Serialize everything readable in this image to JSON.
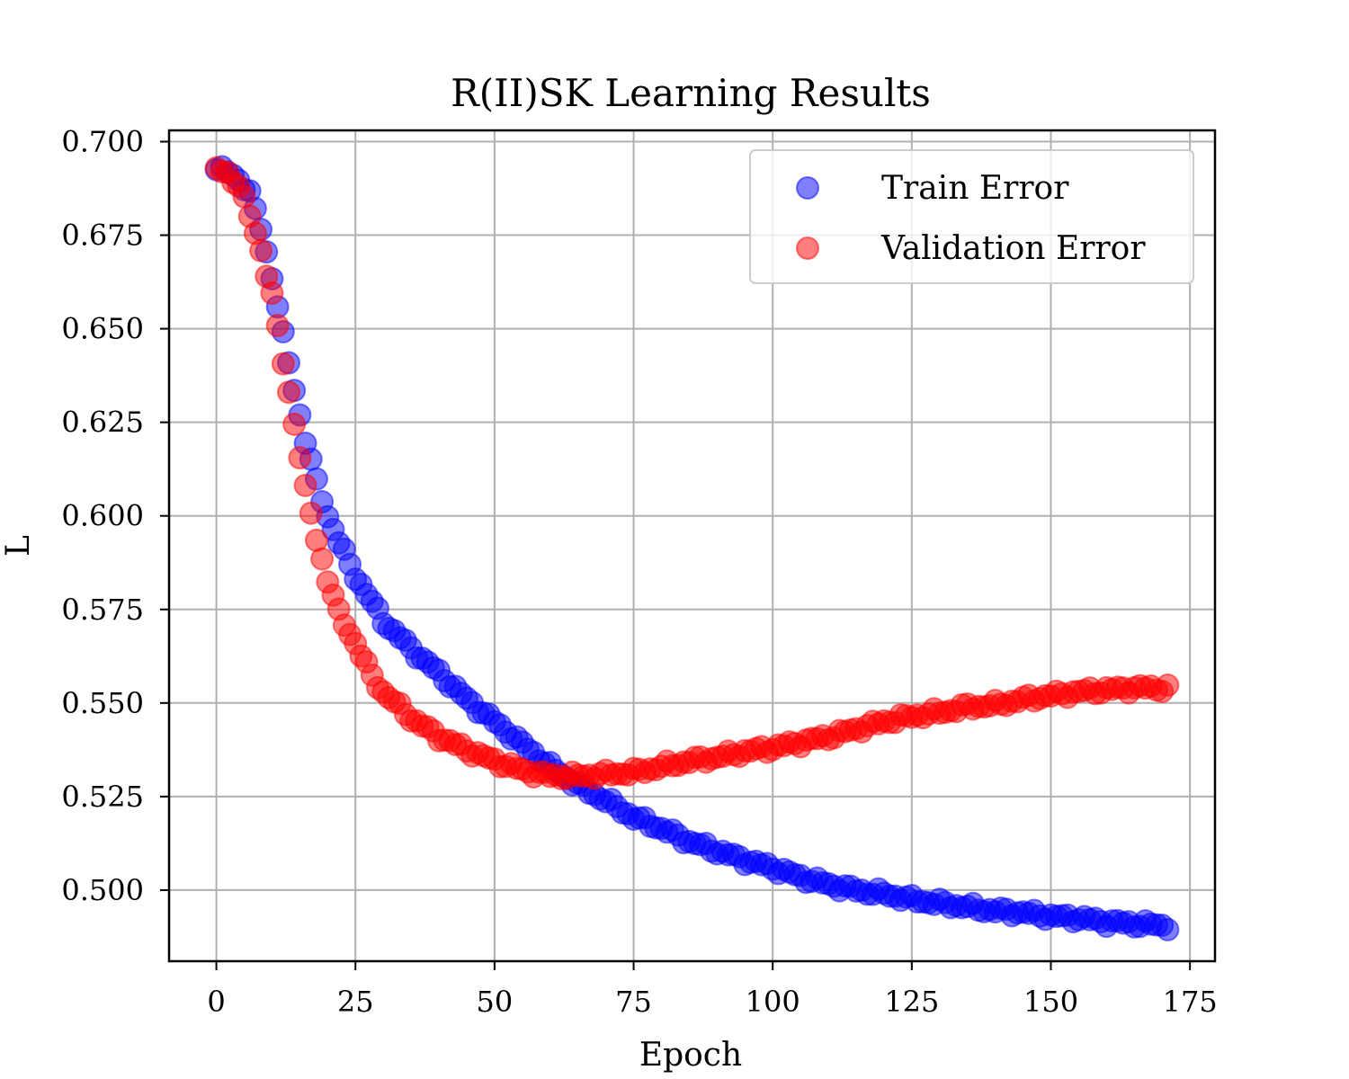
{
  "chart_data": {
    "type": "scatter",
    "title": "R(II)SK Learning Results",
    "xlabel": "Epoch",
    "ylabel": "L",
    "xlim": [
      -8.5,
      179.5
    ],
    "ylim": [
      0.481,
      0.703
    ],
    "xticks": [
      0,
      25,
      50,
      75,
      100,
      125,
      150,
      175
    ],
    "yticks": [
      0.5,
      0.525,
      0.55,
      0.575,
      0.6,
      0.625,
      0.65,
      0.675,
      0.7
    ],
    "xtick_labels": [
      "0",
      "25",
      "50",
      "75",
      "100",
      "125",
      "150",
      "175"
    ],
    "ytick_labels": [
      "0.500",
      "0.525",
      "0.550",
      "0.575",
      "0.600",
      "0.625",
      "0.650",
      "0.675",
      "0.700"
    ],
    "grid": true,
    "legend_position": "top-right",
    "series": [
      {
        "name": "Train Error",
        "color": "#0000ff",
        "anchors": [
          [
            0,
            0.6925
          ],
          [
            2,
            0.692
          ],
          [
            4,
            0.69
          ],
          [
            6,
            0.686
          ],
          [
            8,
            0.677
          ],
          [
            10,
            0.664
          ],
          [
            12,
            0.648
          ],
          [
            14,
            0.634
          ],
          [
            16,
            0.62
          ],
          [
            18,
            0.609
          ],
          [
            20,
            0.6
          ],
          [
            22,
            0.593
          ],
          [
            25,
            0.584
          ],
          [
            30,
            0.572
          ],
          [
            35,
            0.5645
          ],
          [
            40,
            0.558
          ],
          [
            45,
            0.551
          ],
          [
            50,
            0.545
          ],
          [
            55,
            0.539
          ],
          [
            60,
            0.533
          ],
          [
            65,
            0.528
          ],
          [
            70,
            0.524
          ],
          [
            75,
            0.5195
          ],
          [
            80,
            0.5165
          ],
          [
            85,
            0.513
          ],
          [
            90,
            0.5105
          ],
          [
            95,
            0.508
          ],
          [
            100,
            0.506
          ],
          [
            105,
            0.5035
          ],
          [
            110,
            0.5015
          ],
          [
            115,
            0.5
          ],
          [
            120,
            0.499
          ],
          [
            125,
            0.4975
          ],
          [
            130,
            0.4965
          ],
          [
            135,
            0.4955
          ],
          [
            140,
            0.4945
          ],
          [
            145,
            0.494
          ],
          [
            150,
            0.493
          ],
          [
            155,
            0.4925
          ],
          [
            160,
            0.4915
          ],
          [
            165,
            0.491
          ],
          [
            171,
            0.4905
          ]
        ]
      },
      {
        "name": "Validation Error",
        "color": "#ff0000",
        "anchors": [
          [
            0,
            0.6925
          ],
          [
            2,
            0.6915
          ],
          [
            4,
            0.6885
          ],
          [
            6,
            0.68
          ],
          [
            8,
            0.671
          ],
          [
            10,
            0.659
          ],
          [
            12,
            0.641
          ],
          [
            14,
            0.625
          ],
          [
            16,
            0.607
          ],
          [
            18,
            0.594
          ],
          [
            20,
            0.583
          ],
          [
            22,
            0.574
          ],
          [
            25,
            0.566
          ],
          [
            28,
            0.557
          ],
          [
            30,
            0.553
          ],
          [
            35,
            0.546
          ],
          [
            40,
            0.541
          ],
          [
            45,
            0.5375
          ],
          [
            50,
            0.5345
          ],
          [
            55,
            0.532
          ],
          [
            60,
            0.5305
          ],
          [
            65,
            0.5305
          ],
          [
            70,
            0.531
          ],
          [
            75,
            0.5315
          ],
          [
            80,
            0.533
          ],
          [
            85,
            0.5345
          ],
          [
            90,
            0.5355
          ],
          [
            95,
            0.537
          ],
          [
            100,
            0.538
          ],
          [
            105,
            0.5395
          ],
          [
            110,
            0.541
          ],
          [
            115,
            0.543
          ],
          [
            120,
            0.545
          ],
          [
            125,
            0.5465
          ],
          [
            130,
            0.5475
          ],
          [
            135,
            0.549
          ],
          [
            140,
            0.5495
          ],
          [
            145,
            0.551
          ],
          [
            150,
            0.552
          ],
          [
            155,
            0.553
          ],
          [
            160,
            0.5535
          ],
          [
            165,
            0.554
          ],
          [
            171,
            0.554
          ]
        ]
      }
    ]
  }
}
